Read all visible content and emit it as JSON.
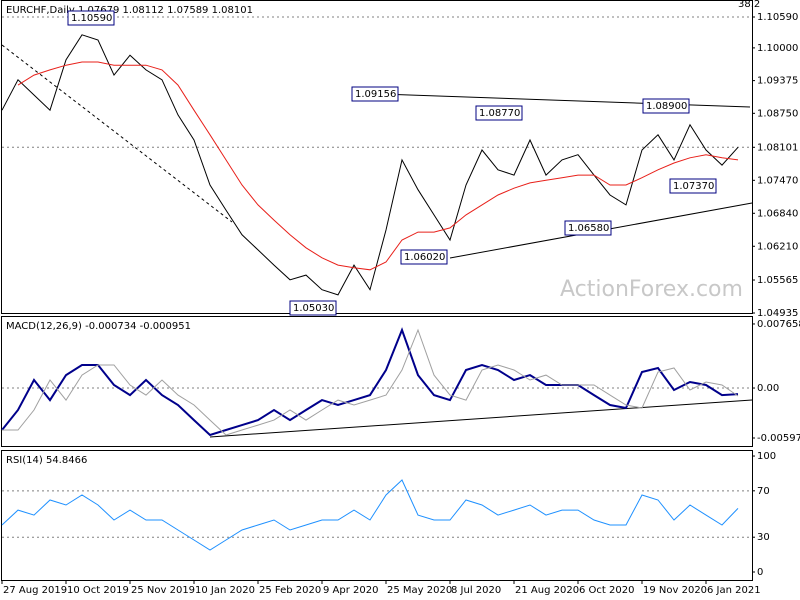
{
  "chart_data": [
    {
      "type": "line",
      "title": "EURCHF,Daily 1.07679 1.08112 1.07589 1.08101",
      "corner_note": "38.2",
      "watermark": "ActionForex.com",
      "xlim": [
        0,
        375
      ],
      "ylim": [
        1.04935,
        1.10915
      ],
      "yticks": [
        {
          "value": 1.1059,
          "label": "1.10590"
        },
        {
          "value": 1.1,
          "label": "1.10000"
        },
        1.09375,
        {
          "value": 1.0875,
          "label": "1.08750"
        },
        1.08101,
        {
          "value": 1.0747,
          "label": "1.07470"
        },
        {
          "value": 1.0684,
          "label": "1.06840"
        },
        {
          "value": 1.0621,
          "label": "1.06210"
        },
        1.05565,
        1.04935
      ],
      "levels": [
        1.1059,
        1.08101
      ],
      "x": [
        0,
        8,
        16,
        24,
        32,
        40,
        48,
        56,
        64,
        72,
        80,
        88,
        96,
        104,
        112,
        120,
        128,
        136,
        144,
        152,
        160,
        168,
        176,
        184,
        192,
        200,
        208,
        216,
        224,
        232,
        240,
        248,
        256,
        264,
        272,
        280,
        288,
        296,
        304,
        312,
        320,
        328,
        336,
        344,
        352,
        360,
        368
      ],
      "series": [
        {
          "color": "#000000",
          "values": [
            1.0881,
            1.0939,
            1.091,
            1.0881,
            1.0977,
            1.1025,
            1.1015,
            1.0948,
            1.0986,
            1.0958,
            1.0939,
            1.0872,
            1.0824,
            1.0738,
            1.069,
            1.0643,
            1.0614,
            1.0585,
            1.0557,
            1.0566,
            1.0538,
            1.0528,
            1.0585,
            1.0538,
            1.0652,
            1.0786,
            1.0729,
            1.0681,
            1.0633,
            1.0738,
            1.0805,
            1.0767,
            1.0757,
            1.0824,
            1.0757,
            1.0786,
            1.0796,
            1.0757,
            1.0719,
            1.07,
            1.0805,
            1.0834,
            1.0786,
            1.0853,
            1.0805,
            1.0776,
            1.081
          ]
        },
        {
          "color": "#e8201a",
          "values": [
            null,
            1.0929,
            1.0948,
            1.0958,
            1.0967,
            1.0973,
            1.0973,
            1.0967,
            1.0967,
            1.0967,
            1.0958,
            1.0929,
            1.0881,
            1.0834,
            1.0786,
            1.0738,
            1.07,
            1.0671,
            1.0643,
            1.0618,
            1.0599,
            1.0585,
            1.058,
            1.0576,
            1.0591,
            1.0633,
            1.0648,
            1.0648,
            1.0656,
            1.0681,
            1.07,
            1.0719,
            1.0732,
            1.0742,
            1.0747,
            1.0752,
            1.0757,
            1.0757,
            1.0738,
            1.0738,
            1.0752,
            1.0767,
            1.078,
            1.079,
            1.0796,
            1.079,
            1.0786
          ]
        }
      ],
      "annotations": [
        {
          "label": "1.10590"
        },
        {
          "label": "1.09156"
        },
        {
          "label": "1.08770"
        },
        {
          "label": "1.08900"
        },
        {
          "label": "1.07370"
        },
        {
          "label": "1.06580"
        },
        {
          "label": "1.06020"
        },
        {
          "label": "1.05030"
        }
      ]
    },
    {
      "type": "line",
      "title": "MACD(12,26,9) -0.000734 -0.000951",
      "xlim": [
        0,
        375
      ],
      "ylim": [
        -0.00693,
        0.00861
      ],
      "yticks": [
        0.007658,
        {
          "value": 0,
          "label": "0.00"
        },
        -0.005974
      ],
      "levels": [
        0
      ],
      "x": [
        0,
        8,
        16,
        24,
        32,
        40,
        48,
        56,
        64,
        72,
        80,
        88,
        96,
        104,
        112,
        120,
        128,
        136,
        144,
        152,
        160,
        168,
        176,
        184,
        192,
        200,
        208,
        216,
        224,
        232,
        240,
        248,
        256,
        264,
        272,
        280,
        288,
        296,
        304,
        312,
        320,
        328,
        336,
        344,
        352,
        360,
        368
      ],
      "series": [
        {
          "color": "#00008b",
          "values": [
            -0.00502,
            -0.00263,
            0.00096,
            -0.00144,
            0.00155,
            0.00275,
            0.00275,
            0.00036,
            -0.00084,
            0.00096,
            -0.00084,
            -0.00203,
            -0.00383,
            -0.00562,
            -0.00502,
            -0.00443,
            -0.00383,
            -0.00263,
            -0.00383,
            -0.00263,
            -0.00144,
            -0.00203,
            -0.00144,
            -0.00084,
            0.00215,
            0.00694,
            0.00155,
            -0.00084,
            -0.00144,
            0.00215,
            0.00275,
            0.00215,
            0.00096,
            0.00155,
            0.00036,
            0.00036,
            0.00036,
            -0.00084,
            -0.00203,
            -0.00239,
            0.00191,
            0.00239,
            -0.00024,
            0.00072,
            0.00036,
            -0.00084,
            -0.00073
          ]
        },
        {
          "color": "#a0a0a0",
          "values": [
            -0.00502,
            -0.00502,
            -0.00263,
            0.00096,
            -0.00144,
            0.00155,
            0.00275,
            0.00275,
            0.00036,
            -0.00084,
            0.00096,
            -0.00084,
            -0.00203,
            -0.00383,
            -0.00562,
            -0.00502,
            -0.00443,
            -0.00383,
            -0.00263,
            -0.00383,
            -0.00263,
            -0.00144,
            -0.00203,
            -0.00144,
            -0.00084,
            0.00215,
            0.00694,
            0.00155,
            -0.00084,
            -0.00144,
            0.00215,
            0.00275,
            0.00215,
            0.00096,
            0.00155,
            0.00036,
            0.00036,
            0.00036,
            -0.00084,
            -0.00203,
            -0.00239,
            0.00191,
            0.00239,
            -0.00024,
            0.00072,
            0.00036,
            -0.00095
          ]
        }
      ]
    },
    {
      "type": "line",
      "title": "RSI(14) 54.8466",
      "xlim": [
        0,
        375
      ],
      "ylim": [
        -6.9,
        105.2
      ],
      "yticks": [
        100,
        70,
        30,
        0
      ],
      "levels": [
        70,
        30
      ],
      "xticks": [
        {
          "value": 0,
          "label": "27 Aug 2019"
        },
        {
          "value": 32,
          "label": "10 Oct 2019"
        },
        {
          "value": 64,
          "label": "25 Nov 2019"
        },
        {
          "value": 96,
          "label": "10 Jan 2020"
        },
        {
          "value": 128,
          "label": "25 Feb 2020"
        },
        {
          "value": 160,
          "label": "9 Apr 2020"
        },
        {
          "value": 192,
          "label": "25 May 2020"
        },
        {
          "value": 224,
          "label": "8 Jul 2020"
        },
        {
          "value": 256,
          "label": "21 Aug 2020"
        },
        {
          "value": 288,
          "label": "6 Oct 2020"
        },
        {
          "value": 320,
          "label": "19 Nov 2020"
        },
        {
          "value": 352,
          "label": "6 Jan 2021"
        }
      ],
      "x": [
        0,
        8,
        16,
        24,
        32,
        40,
        48,
        56,
        64,
        72,
        80,
        88,
        96,
        104,
        112,
        120,
        128,
        136,
        144,
        152,
        160,
        168,
        176,
        184,
        192,
        200,
        208,
        216,
        224,
        232,
        240,
        248,
        256,
        264,
        272,
        280,
        288,
        296,
        304,
        312,
        320,
        328,
        336,
        344,
        352,
        360,
        368
      ],
      "series": [
        {
          "color": "#1e90ff",
          "values": [
            40.5,
            53.4,
            49.1,
            62.1,
            57.8,
            66.4,
            57.8,
            44.8,
            53.4,
            44.8,
            44.8,
            36.2,
            27.6,
            19.0,
            27.6,
            36.2,
            40.5,
            44.8,
            36.2,
            40.5,
            44.8,
            44.8,
            53.4,
            44.8,
            66.4,
            79.3,
            49.1,
            44.8,
            44.8,
            62.1,
            57.8,
            49.1,
            53.4,
            57.8,
            49.1,
            53.4,
            53.4,
            44.8,
            40.5,
            40.5,
            66.4,
            62.1,
            44.8,
            57.8,
            49.1,
            40.5,
            54.8
          ]
        }
      ]
    }
  ]
}
